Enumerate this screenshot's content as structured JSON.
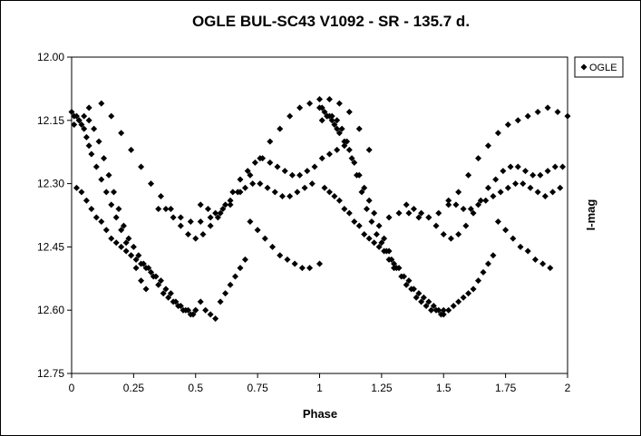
{
  "chart_data": {
    "type": "scatter",
    "title": "OGLE BUL-SC43  V1092 - SR - 135.7 d.",
    "xlabel": "Phase",
    "ylabel": "I-mag",
    "xlim": [
      0,
      2
    ],
    "ylim": [
      12.75,
      12.0
    ],
    "y_inverted": true,
    "xticks": [
      "0",
      "0.25",
      "0.5",
      "0.75",
      "1",
      "1.25",
      "1.5",
      "1.75",
      "2"
    ],
    "yticks": [
      "12.00",
      "12.15",
      "12.30",
      "12.45",
      "12.60",
      "12.75"
    ],
    "grid": false,
    "legend": {
      "position": "top-right",
      "entries": [
        "OGLE"
      ]
    },
    "marker": "diamond",
    "color": "#000000",
    "series": [
      {
        "name": "OGLE",
        "x": [
          0.0,
          0.01,
          0.02,
          0.03,
          0.04,
          0.05,
          0.06,
          0.07,
          0.08,
          0.1,
          0.12,
          0.14,
          0.16,
          0.18,
          0.2,
          0.22,
          0.24,
          0.26,
          0.28,
          0.3,
          0.01,
          0.03,
          0.05,
          0.07,
          0.09,
          0.11,
          0.13,
          0.15,
          0.17,
          0.19,
          0.21,
          0.23,
          0.25,
          0.27,
          0.29,
          0.31,
          0.33,
          0.35,
          0.37,
          0.39,
          0.41,
          0.43,
          0.45,
          0.47,
          0.49,
          0.5,
          0.02,
          0.04,
          0.06,
          0.08,
          0.1,
          0.12,
          0.14,
          0.16,
          0.18,
          0.2,
          0.22,
          0.24,
          0.26,
          0.28,
          0.3,
          0.32,
          0.34,
          0.36,
          0.38,
          0.4,
          0.42,
          0.44,
          0.46,
          0.48,
          0.5,
          0.52,
          0.54,
          0.56,
          0.58,
          0.6,
          0.62,
          0.64,
          0.66,
          0.68,
          0.7,
          0.07,
          0.12,
          0.16,
          0.2,
          0.24,
          0.28,
          0.32,
          0.36,
          0.4,
          0.44,
          0.48,
          0.52,
          0.56,
          0.6,
          0.64,
          0.68,
          0.72,
          0.76,
          0.8,
          0.84,
          0.88,
          0.92,
          0.96,
          1.0,
          1.04,
          1.08,
          1.12,
          1.16,
          1.2,
          0.35,
          0.38,
          0.41,
          0.44,
          0.47,
          0.5,
          0.53,
          0.56,
          0.59,
          0.62,
          0.65,
          0.68,
          0.71,
          0.74,
          0.77,
          0.8,
          0.83,
          0.86,
          0.89,
          0.92,
          0.95,
          0.98,
          1.01,
          1.04,
          1.07,
          1.1,
          0.52,
          0.55,
          0.58,
          0.61,
          0.64,
          0.67,
          0.7,
          0.73,
          0.76,
          0.79,
          0.82,
          0.85,
          0.88,
          0.91,
          0.94,
          0.97,
          0.72,
          0.75,
          0.78,
          0.81,
          0.84,
          0.87,
          0.9,
          0.93,
          0.96,
          1.0,
          1.0,
          1.01,
          1.02,
          1.03,
          1.04,
          1.05,
          1.06,
          1.07,
          1.08,
          1.1,
          1.12,
          1.14,
          1.16,
          1.18,
          1.2,
          1.22,
          1.24,
          1.26,
          1.28,
          1.3,
          1.01,
          1.03,
          1.05,
          1.07,
          1.09,
          1.11,
          1.13,
          1.15,
          1.17,
          1.19,
          1.21,
          1.23,
          1.25,
          1.27,
          1.29,
          1.31,
          1.33,
          1.35,
          1.37,
          1.39,
          1.41,
          1.43,
          1.45,
          1.47,
          1.49,
          1.5,
          1.02,
          1.04,
          1.06,
          1.08,
          1.1,
          1.12,
          1.14,
          1.16,
          1.18,
          1.2,
          1.22,
          1.24,
          1.26,
          1.28,
          1.3,
          1.32,
          1.34,
          1.36,
          1.38,
          1.4,
          1.42,
          1.44,
          1.46,
          1.48,
          1.5,
          1.52,
          1.54,
          1.56,
          1.58,
          1.6,
          1.62,
          1.64,
          1.66,
          1.68,
          1.7,
          1.28,
          1.32,
          1.36,
          1.4,
          1.44,
          1.48,
          1.52,
          1.56,
          1.6,
          1.64,
          1.68,
          1.72,
          1.76,
          1.8,
          1.84,
          1.88,
          1.92,
          1.96,
          2.0,
          1.35,
          1.38,
          1.41,
          1.44,
          1.47,
          1.5,
          1.53,
          1.56,
          1.59,
          1.62,
          1.65,
          1.68,
          1.71,
          1.74,
          1.77,
          1.8,
          1.83,
          1.86,
          1.89,
          1.92,
          1.95,
          1.98,
          1.52,
          1.55,
          1.58,
          1.61,
          1.64,
          1.67,
          1.7,
          1.73,
          1.76,
          1.79,
          1.82,
          1.85,
          1.88,
          1.91,
          1.94,
          1.97,
          1.72,
          1.75,
          1.78,
          1.81,
          1.84,
          1.87,
          1.9,
          1.93
        ],
        "y": [
          12.13,
          12.14,
          12.14,
          12.15,
          12.16,
          12.17,
          12.19,
          12.21,
          12.23,
          12.26,
          12.29,
          12.32,
          12.35,
          12.38,
          12.41,
          12.44,
          12.47,
          12.5,
          12.53,
          12.55,
          12.16,
          12.15,
          12.14,
          12.15,
          12.17,
          12.2,
          12.24,
          12.28,
          12.32,
          12.36,
          12.4,
          12.43,
          12.45,
          12.47,
          12.49,
          12.5,
          12.52,
          12.54,
          12.56,
          12.57,
          12.58,
          12.59,
          12.6,
          12.6,
          12.61,
          12.6,
          12.31,
          12.32,
          12.34,
          12.36,
          12.38,
          12.39,
          12.41,
          12.43,
          12.44,
          12.45,
          12.46,
          12.47,
          12.48,
          12.49,
          12.5,
          12.51,
          12.52,
          12.53,
          12.55,
          12.56,
          12.58,
          12.59,
          12.6,
          12.61,
          12.6,
          12.58,
          12.6,
          12.61,
          12.62,
          12.58,
          12.56,
          12.54,
          12.52,
          12.5,
          12.48,
          12.12,
          12.11,
          12.14,
          12.18,
          12.22,
          12.26,
          12.3,
          12.33,
          12.36,
          12.38,
          12.39,
          12.39,
          12.38,
          12.37,
          12.35,
          12.32,
          12.28,
          12.24,
          12.2,
          12.17,
          12.14,
          12.12,
          12.11,
          12.1,
          12.1,
          12.11,
          12.13,
          12.17,
          12.22,
          12.36,
          12.36,
          12.38,
          12.4,
          12.42,
          12.43,
          12.42,
          12.4,
          12.38,
          12.35,
          12.32,
          12.29,
          12.27,
          12.25,
          12.24,
          12.25,
          12.26,
          12.27,
          12.28,
          12.28,
          12.27,
          12.26,
          12.24,
          12.23,
          12.22,
          12.21,
          12.35,
          12.36,
          12.37,
          12.36,
          12.34,
          12.32,
          12.31,
          12.3,
          12.3,
          12.31,
          12.32,
          12.33,
          12.33,
          12.32,
          12.31,
          12.3,
          12.39,
          12.41,
          12.43,
          12.45,
          12.47,
          12.48,
          12.49,
          12.5,
          12.5,
          12.49,
          12.12,
          12.12,
          12.13,
          12.14,
          12.14,
          12.15,
          12.16,
          12.17,
          12.18,
          12.2,
          12.22,
          12.25,
          12.28,
          12.31,
          12.34,
          12.37,
          12.4,
          12.43,
          12.46,
          12.5,
          12.15,
          12.14,
          12.14,
          12.15,
          12.17,
          12.2,
          12.24,
          12.28,
          12.32,
          12.36,
          12.39,
          12.42,
          12.44,
          12.46,
          12.48,
          12.5,
          12.52,
          12.54,
          12.55,
          12.57,
          12.58,
          12.59,
          12.6,
          12.6,
          12.61,
          12.6,
          12.31,
          12.32,
          12.33,
          12.34,
          12.36,
          12.37,
          12.39,
          12.4,
          12.42,
          12.43,
          12.44,
          12.45,
          12.46,
          12.48,
          12.49,
          12.5,
          12.52,
          12.53,
          12.55,
          12.56,
          12.57,
          12.58,
          12.59,
          12.6,
          12.61,
          12.6,
          12.59,
          12.58,
          12.57,
          12.56,
          12.55,
          12.53,
          12.51,
          12.49,
          12.47,
          12.38,
          12.37,
          12.37,
          12.38,
          12.38,
          12.37,
          12.35,
          12.32,
          12.28,
          12.24,
          12.21,
          12.18,
          12.16,
          12.15,
          12.14,
          12.13,
          12.12,
          12.13,
          12.14,
          12.35,
          12.36,
          12.37,
          12.38,
          12.4,
          12.42,
          12.43,
          12.42,
          12.4,
          12.37,
          12.34,
          12.31,
          12.29,
          12.27,
          12.26,
          12.26,
          12.27,
          12.28,
          12.28,
          12.27,
          12.26,
          12.26,
          12.34,
          12.35,
          12.36,
          12.36,
          12.35,
          12.34,
          12.33,
          12.32,
          12.31,
          12.3,
          12.3,
          12.31,
          12.32,
          12.33,
          12.32,
          12.31,
          12.39,
          12.41,
          12.43,
          12.45,
          12.46,
          12.48,
          12.49,
          12.5
        ]
      }
    ]
  }
}
